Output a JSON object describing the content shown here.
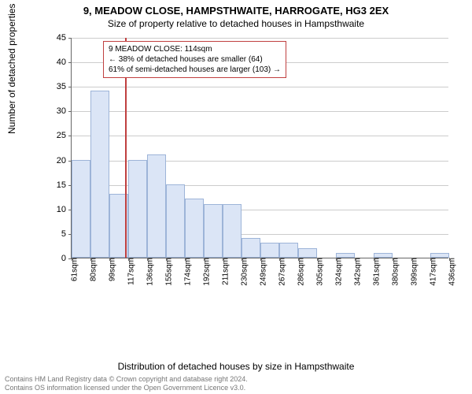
{
  "title_main": "9, MEADOW CLOSE, HAMPSTHWAITE, HARROGATE, HG3 2EX",
  "title_sub": "Size of property relative to detached houses in Hampsthwaite",
  "y_label": "Number of detached properties",
  "x_label": "Distribution of detached houses by size in Hampsthwaite",
  "chart": {
    "type": "histogram",
    "ylim": [
      0,
      45
    ],
    "ytick_step": 5,
    "bar_fill": "#dbe5f6",
    "bar_stroke": "#9db4d8",
    "grid_color": "#cccccc",
    "axis_color": "#666666",
    "marker_color": "#c04040",
    "marker_x": 114,
    "x_min": 61,
    "x_bin_width": 18.8,
    "x_tick_labels": [
      "61sqm",
      "80sqm",
      "99sqm",
      "117sqm",
      "136sqm",
      "155sqm",
      "174sqm",
      "192sqm",
      "211sqm",
      "230sqm",
      "249sqm",
      "267sqm",
      "286sqm",
      "305sqm",
      "324sqm",
      "342sqm",
      "361sqm",
      "380sqm",
      "399sqm",
      "417sqm",
      "436sqm"
    ],
    "bars": [
      20,
      34,
      13,
      20,
      21,
      15,
      12,
      11,
      11,
      4,
      3,
      3,
      2,
      0,
      1,
      0,
      1,
      0,
      0,
      1
    ]
  },
  "annotation": {
    "line1": "9 MEADOW CLOSE: 114sqm",
    "line2": "← 38% of detached houses are smaller (64)",
    "line3": "61% of semi-detached houses are larger (103) →",
    "border_color": "#c04040"
  },
  "footer": {
    "line1": "Contains HM Land Registry data © Crown copyright and database right 2024.",
    "line2": "Contains OS information licensed under the Open Government Licence v3.0."
  }
}
